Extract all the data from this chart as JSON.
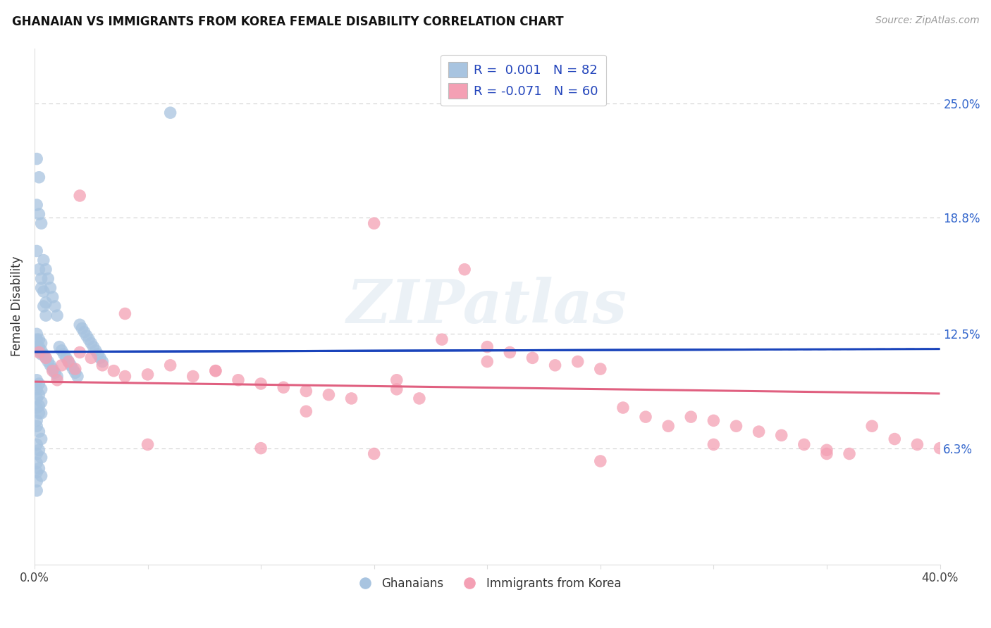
{
  "title": "GHANAIAN VS IMMIGRANTS FROM KOREA FEMALE DISABILITY CORRELATION CHART",
  "source": "Source: ZipAtlas.com",
  "ylabel": "Female Disability",
  "ytick_labels": [
    "25.0%",
    "18.8%",
    "12.5%",
    "6.3%"
  ],
  "ytick_values": [
    0.25,
    0.188,
    0.125,
    0.063
  ],
  "xmin": 0.0,
  "xmax": 0.4,
  "ymin": 0.0,
  "ymax": 0.28,
  "ghanaian_color": "#a8c4e0",
  "korean_color": "#f4a0b4",
  "trend_blue": "#1a44bb",
  "trend_pink": "#e06080",
  "watermark": "ZIPatlas",
  "ghanaians_label": "Ghanaians",
  "koreans_label": "Immigrants from Korea",
  "gh_x": [
    0.001,
    0.002,
    0.003,
    0.004,
    0.005,
    0.006,
    0.007,
    0.008,
    0.009,
    0.01,
    0.011,
    0.012,
    0.013,
    0.014,
    0.015,
    0.016,
    0.017,
    0.018,
    0.019,
    0.02,
    0.021,
    0.022,
    0.023,
    0.024,
    0.025,
    0.026,
    0.027,
    0.028,
    0.029,
    0.03,
    0.001,
    0.002,
    0.003,
    0.004,
    0.005,
    0.006,
    0.007,
    0.008,
    0.009,
    0.01,
    0.001,
    0.002,
    0.003,
    0.004,
    0.005,
    0.001,
    0.002,
    0.003,
    0.004,
    0.005,
    0.001,
    0.002,
    0.003,
    0.001,
    0.002,
    0.003,
    0.001,
    0.002,
    0.003,
    0.001,
    0.002,
    0.001,
    0.06,
    0.001,
    0.002,
    0.003,
    0.001,
    0.002,
    0.003,
    0.001,
    0.002,
    0.003,
    0.001,
    0.002,
    0.003,
    0.001,
    0.002,
    0.003,
    0.001,
    0.001,
    0.001,
    0.001
  ],
  "gh_y": [
    0.122,
    0.118,
    0.116,
    0.114,
    0.112,
    0.11,
    0.108,
    0.106,
    0.104,
    0.102,
    0.118,
    0.116,
    0.114,
    0.112,
    0.11,
    0.108,
    0.106,
    0.104,
    0.102,
    0.13,
    0.128,
    0.126,
    0.124,
    0.122,
    0.12,
    0.118,
    0.116,
    0.114,
    0.112,
    0.11,
    0.195,
    0.19,
    0.185,
    0.165,
    0.16,
    0.155,
    0.15,
    0.145,
    0.14,
    0.135,
    0.22,
    0.21,
    0.155,
    0.148,
    0.142,
    0.17,
    0.16,
    0.15,
    0.14,
    0.135,
    0.125,
    0.122,
    0.12,
    0.118,
    0.116,
    0.114,
    0.095,
    0.092,
    0.088,
    0.085,
    0.082,
    0.078,
    0.245,
    0.075,
    0.072,
    0.068,
    0.065,
    0.062,
    0.058,
    0.055,
    0.052,
    0.048,
    0.1,
    0.098,
    0.095,
    0.09,
    0.086,
    0.082,
    0.06,
    0.04,
    0.05,
    0.045
  ],
  "ko_x": [
    0.002,
    0.005,
    0.008,
    0.01,
    0.012,
    0.015,
    0.018,
    0.02,
    0.025,
    0.03,
    0.035,
    0.04,
    0.05,
    0.06,
    0.07,
    0.08,
    0.09,
    0.1,
    0.11,
    0.12,
    0.13,
    0.14,
    0.15,
    0.16,
    0.17,
    0.18,
    0.19,
    0.2,
    0.21,
    0.22,
    0.23,
    0.24,
    0.25,
    0.26,
    0.27,
    0.28,
    0.29,
    0.3,
    0.31,
    0.32,
    0.33,
    0.34,
    0.35,
    0.36,
    0.37,
    0.38,
    0.39,
    0.4,
    0.05,
    0.1,
    0.15,
    0.2,
    0.25,
    0.3,
    0.35,
    0.02,
    0.04,
    0.08,
    0.12,
    0.16
  ],
  "ko_y": [
    0.115,
    0.112,
    0.105,
    0.1,
    0.108,
    0.11,
    0.106,
    0.115,
    0.112,
    0.108,
    0.105,
    0.102,
    0.103,
    0.108,
    0.102,
    0.105,
    0.1,
    0.098,
    0.096,
    0.094,
    0.092,
    0.09,
    0.185,
    0.095,
    0.09,
    0.122,
    0.16,
    0.118,
    0.115,
    0.112,
    0.108,
    0.11,
    0.106,
    0.085,
    0.08,
    0.075,
    0.08,
    0.078,
    0.075,
    0.072,
    0.07,
    0.065,
    0.062,
    0.06,
    0.075,
    0.068,
    0.065,
    0.063,
    0.065,
    0.063,
    0.06,
    0.11,
    0.056,
    0.065,
    0.06,
    0.2,
    0.136,
    0.105,
    0.083,
    0.1
  ]
}
